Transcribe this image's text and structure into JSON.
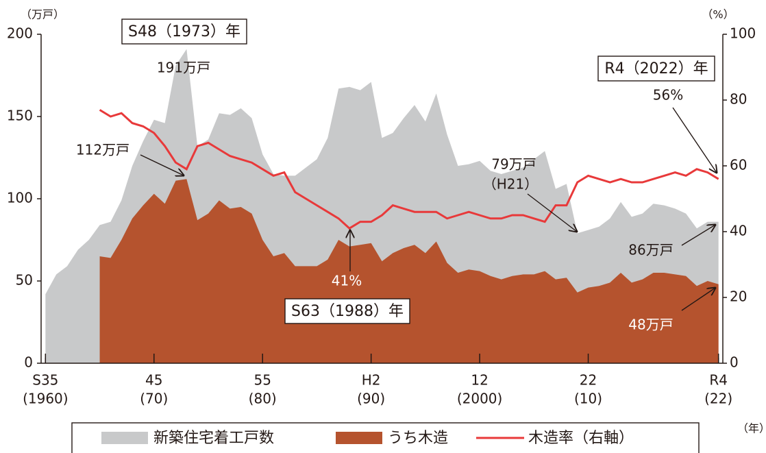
{
  "chart_data": {
    "type": "area",
    "x": [
      1960,
      1961,
      1962,
      1963,
      1964,
      1965,
      1966,
      1967,
      1968,
      1969,
      1970,
      1971,
      1972,
      1973,
      1974,
      1975,
      1976,
      1977,
      1978,
      1979,
      1980,
      1981,
      1982,
      1983,
      1984,
      1985,
      1986,
      1987,
      1988,
      1989,
      1990,
      1991,
      1992,
      1993,
      1994,
      1995,
      1996,
      1997,
      1998,
      1999,
      2000,
      2001,
      2002,
      2003,
      2004,
      2005,
      2006,
      2007,
      2008,
      2009,
      2010,
      2011,
      2012,
      2013,
      2014,
      2015,
      2016,
      2017,
      2018,
      2019,
      2020,
      2021,
      2022
    ],
    "series": [
      {
        "name": "新築住宅着工戸数",
        "type": "area",
        "color": "#c8c9ca",
        "values": [
          42,
          54,
          59,
          69,
          75,
          84,
          86,
          99,
          120,
          135,
          148,
          146,
          181,
          191,
          132,
          136,
          152,
          151,
          155,
          149,
          127,
          115,
          114,
          114,
          119,
          124,
          137,
          167,
          168,
          166,
          171,
          137,
          140,
          149,
          157,
          147,
          164,
          139,
          120,
          121,
          123,
          117,
          115,
          117,
          119,
          124,
          129,
          106,
          109,
          79,
          81,
          83,
          88,
          98,
          89,
          91,
          97,
          96,
          94,
          91,
          82,
          86,
          86
        ]
      },
      {
        "name": "うち木造",
        "type": "area",
        "color": "#b5532e",
        "values": [
          null,
          null,
          null,
          null,
          null,
          65,
          64,
          75,
          88,
          96,
          103,
          97,
          111,
          112,
          87,
          91,
          99,
          94,
          95,
          91,
          75,
          65,
          67,
          59,
          59,
          59,
          63,
          75,
          71,
          72,
          73,
          62,
          67,
          70,
          72,
          67,
          74,
          61,
          55,
          57,
          56,
          53,
          51,
          53,
          54,
          54,
          56,
          51,
          52,
          43,
          46,
          47,
          49,
          55,
          49,
          51,
          55,
          55,
          54,
          53,
          47,
          50,
          48
        ]
      },
      {
        "name": "木造率（右軸）",
        "type": "line",
        "axis": "y2",
        "color": "#e8393a",
        "values": [
          null,
          null,
          null,
          null,
          null,
          77,
          75,
          76,
          73,
          72,
          70,
          66,
          61,
          59,
          66,
          67,
          65,
          63,
          62,
          61,
          59,
          57,
          58,
          52,
          50,
          48,
          46,
          44,
          41,
          43,
          43,
          45,
          48,
          47,
          46,
          46,
          46,
          44,
          45,
          46,
          45,
          44,
          44,
          45,
          45,
          44,
          43,
          48,
          48,
          55,
          57,
          56,
          55,
          56,
          55,
          55,
          56,
          57,
          58,
          57,
          59,
          58,
          56
        ]
      }
    ],
    "xlim": [
      1959.6,
      2022.4
    ],
    "xticks": [
      {
        "value": 1960,
        "label": "S35"
      },
      {
        "value": 1970,
        "label": "45"
      },
      {
        "value": 1980,
        "label": "55"
      },
      {
        "value": 1990,
        "label": "H2"
      },
      {
        "value": 2000,
        "label": "12"
      },
      {
        "value": 2010,
        "label": "22"
      },
      {
        "value": 2022,
        "label": "R4"
      }
    ],
    "xtick_sublabels": [
      "(1960)",
      "(70)",
      "(80)",
      "(90)",
      "(2000)",
      "(10)",
      "(22)"
    ],
    "ylim": [
      0,
      200
    ],
    "yticks": [
      0,
      50,
      100,
      150,
      200
    ],
    "y2lim": [
      0,
      100
    ],
    "y2ticks": [
      0,
      20,
      40,
      60,
      80,
      100
    ],
    "ylabel": "（万戸）",
    "y2label": "（%）",
    "xlabel": "（年）",
    "annotations": [
      "S48（1973）年",
      "191万戸",
      "R4（2022）年",
      "56%",
      "112万戸",
      "79万戸",
      "（H21）",
      "86万戸",
      "41%",
      "S63（1988）年",
      "48万戸"
    ]
  }
}
